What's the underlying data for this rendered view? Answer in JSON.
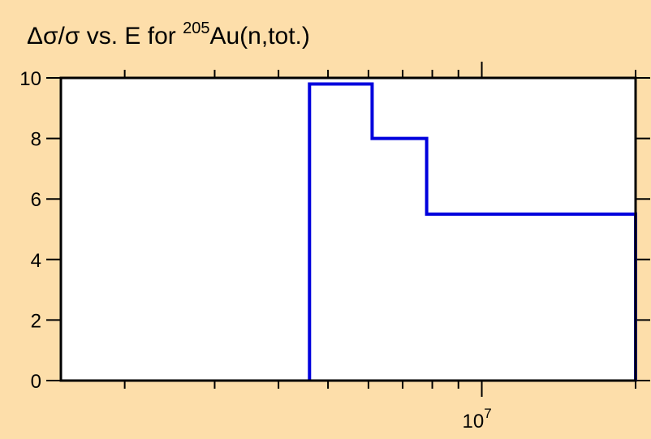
{
  "chart_data": {
    "type": "line",
    "step": true,
    "title_parts": {
      "prefix": "Δσ/σ vs. E for ",
      "superscript": "205",
      "suffix": "Au(n,tot.)"
    },
    "xlabel": "",
    "ylabel": "",
    "x_scale": "log",
    "xlim": [
      1500000,
      20000000
    ],
    "ylim": [
      0,
      10
    ],
    "x_major_ticks": [
      {
        "value": 10000000,
        "base": "10",
        "exp": "7"
      }
    ],
    "x_minor_ticks": [
      2000000,
      3000000,
      4000000,
      5000000,
      6000000,
      7000000,
      8000000,
      9000000,
      20000000
    ],
    "y_ticks": [
      {
        "value": 0,
        "label": "0"
      },
      {
        "value": 2,
        "label": "2"
      },
      {
        "value": 4,
        "label": "4"
      },
      {
        "value": 6,
        "label": "6"
      },
      {
        "value": 8,
        "label": "8"
      },
      {
        "value": 10,
        "label": "10"
      }
    ],
    "series": [
      {
        "color": "#0000dd",
        "steps": [
          {
            "x_start": 4600000,
            "x_end": 6100000,
            "y": 9.8
          },
          {
            "x_start": 6100000,
            "x_end": 7800000,
            "y": 8.0
          },
          {
            "x_start": 7800000,
            "x_end": 20000000,
            "y": 5.5
          }
        ],
        "baseline": 0
      }
    ],
    "grid": false,
    "legend": "none",
    "background": "#fddeaa",
    "plot_background": "#ffffff"
  }
}
